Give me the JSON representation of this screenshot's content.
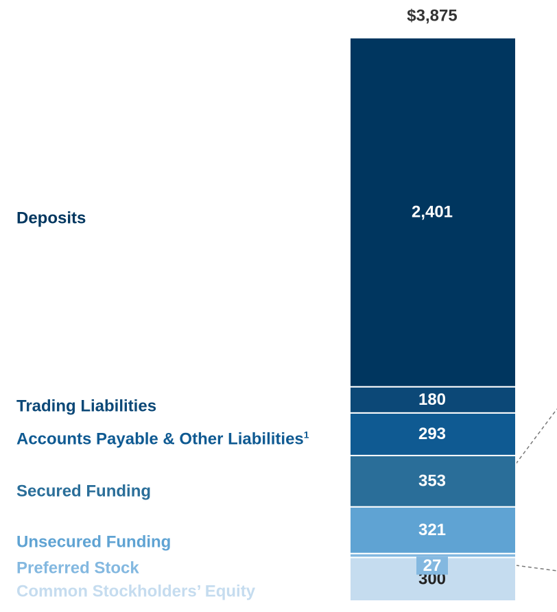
{
  "chart_data": {
    "type": "stacked-bar",
    "total": {
      "value": 3875,
      "label": "$3,875"
    },
    "categories": [
      "Deposits",
      "Trading Liabilities",
      "Accounts Payable & Other Liabilities",
      "Secured Funding",
      "Unsecured Funding",
      "Preferred Stock",
      "Common Stockholders’ Equity"
    ],
    "values": [
      2401,
      180,
      293,
      353,
      321,
      27,
      300
    ],
    "value_labels": [
      "2,401",
      "180",
      "293",
      "353",
      "321",
      "27",
      "300"
    ],
    "colors": [
      "#00365f",
      "#0c4877",
      "#0f5a92",
      "#2a6e99",
      "#5fa3d3",
      "#83b8e0",
      "#c5dcef"
    ],
    "footnote_marker": "1",
    "ylim": [
      0,
      3875
    ]
  }
}
